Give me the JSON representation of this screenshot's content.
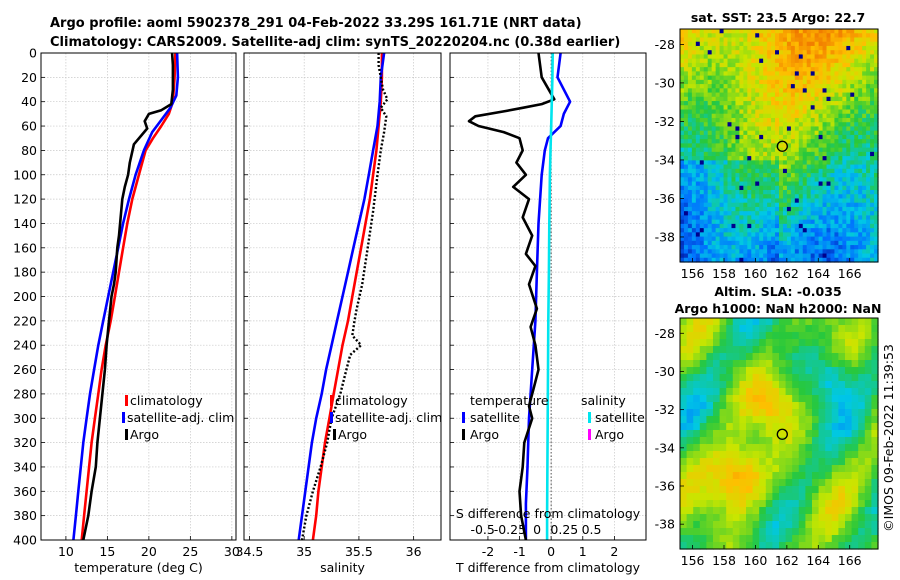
{
  "title": {
    "line1": "Argo profile: aoml 5902378_291 04-Feb-2022 33.29S 161.71E (NRT data)",
    "line2": "Climatology: CARS2009. Satellite-adj clim: synTS_20220204.nc (0.38d earlier)"
  },
  "timestamp": "©IMOS 09-Feb-2022 11:39:53",
  "colors": {
    "climatology": "#ff0000",
    "satellite": "#0000ff",
    "argo": "#000000",
    "sal_satellite": "#00e5ee",
    "sal_argo": "#ff00ff"
  },
  "chart_data": [
    {
      "type": "line",
      "panel": "temperature",
      "xlabel": "temperature (deg C)",
      "xlim": [
        7,
        30.5
      ],
      "xticks": [
        10,
        15,
        20,
        25,
        30
      ],
      "ylim": [
        400,
        0
      ],
      "yticks": [
        0,
        20,
        40,
        60,
        80,
        100,
        120,
        140,
        160,
        180,
        200,
        220,
        240,
        260,
        280,
        300,
        320,
        340,
        360,
        380,
        400
      ],
      "grid": true,
      "legend": [
        "climatology",
        "satellite-adj. clim",
        "Argo"
      ],
      "series": [
        {
          "name": "climatology",
          "color": "#ff0000",
          "points": [
            [
              23.2,
              0
            ],
            [
              23.1,
              20
            ],
            [
              22.9,
              40
            ],
            [
              22.4,
              50
            ],
            [
              21.5,
              60
            ],
            [
              20.5,
              70
            ],
            [
              19.6,
              80
            ],
            [
              18.8,
              100
            ],
            [
              18.0,
              120
            ],
            [
              17.4,
              140
            ],
            [
              16.9,
              160
            ],
            [
              16.4,
              180
            ],
            [
              15.9,
              200
            ],
            [
              15.4,
              220
            ],
            [
              14.8,
              240
            ],
            [
              14.3,
              260
            ],
            [
              13.9,
              280
            ],
            [
              13.5,
              300
            ],
            [
              13.1,
              320
            ],
            [
              12.8,
              340
            ],
            [
              12.5,
              360
            ],
            [
              12.2,
              380
            ],
            [
              11.9,
              400
            ]
          ]
        },
        {
          "name": "satellite-adj. clim",
          "color": "#0000ff",
          "points": [
            [
              23.4,
              0
            ],
            [
              23.5,
              20
            ],
            [
              23.3,
              35
            ],
            [
              22.6,
              45
            ],
            [
              21.5,
              55
            ],
            [
              20.4,
              65
            ],
            [
              19.4,
              80
            ],
            [
              18.4,
              100
            ],
            [
              17.6,
              120
            ],
            [
              16.9,
              140
            ],
            [
              16.3,
              160
            ],
            [
              15.7,
              180
            ],
            [
              15.1,
              200
            ],
            [
              14.5,
              220
            ],
            [
              13.9,
              240
            ],
            [
              13.4,
              260
            ],
            [
              12.9,
              280
            ],
            [
              12.5,
              300
            ],
            [
              12.1,
              320
            ],
            [
              11.8,
              340
            ],
            [
              11.5,
              360
            ],
            [
              11.2,
              380
            ],
            [
              10.9,
              400
            ]
          ]
        },
        {
          "name": "Argo",
          "color": "#000000",
          "points": [
            [
              22.8,
              0
            ],
            [
              22.9,
              10
            ],
            [
              22.9,
              30
            ],
            [
              22.7,
              42
            ],
            [
              21.5,
              47
            ],
            [
              20.0,
              50
            ],
            [
              19.5,
              56
            ],
            [
              19.8,
              62
            ],
            [
              18.2,
              75
            ],
            [
              17.7,
              90
            ],
            [
              17.5,
              100
            ],
            [
              17.1,
              110
            ],
            [
              16.8,
              120
            ],
            [
              16.4,
              150
            ],
            [
              16.2,
              160
            ],
            [
              16.0,
              180
            ],
            [
              15.8,
              190
            ],
            [
              15.5,
              200
            ],
            [
              15.2,
              220
            ],
            [
              14.9,
              240
            ],
            [
              14.7,
              260
            ],
            [
              14.4,
              280
            ],
            [
              14.1,
              300
            ],
            [
              13.8,
              320
            ],
            [
              13.6,
              340
            ],
            [
              13.1,
              360
            ],
            [
              12.7,
              380
            ],
            [
              12.1,
              400
            ]
          ]
        }
      ]
    },
    {
      "type": "line",
      "panel": "salinity",
      "xlabel": "salinity",
      "xlim": [
        34.45,
        36.25
      ],
      "xticks": [
        34.5,
        35,
        35.5,
        36
      ],
      "xticklabels": [
        "34.5",
        "35",
        "35.5",
        "36"
      ],
      "ylim": [
        400,
        0
      ],
      "grid": true,
      "legend": [
        "climatology",
        "satellite-adj. clim",
        "Argo"
      ],
      "series": [
        {
          "name": "climatology",
          "color": "#ff0000",
          "points": [
            [
              35.71,
              0
            ],
            [
              35.71,
              20
            ],
            [
              35.7,
              40
            ],
            [
              35.68,
              60
            ],
            [
              35.66,
              80
            ],
            [
              35.63,
              100
            ],
            [
              35.6,
              120
            ],
            [
              35.56,
              140
            ],
            [
              35.52,
              160
            ],
            [
              35.48,
              180
            ],
            [
              35.44,
              200
            ],
            [
              35.4,
              220
            ],
            [
              35.35,
              240
            ],
            [
              35.31,
              260
            ],
            [
              35.27,
              280
            ],
            [
              35.23,
              300
            ],
            [
              35.19,
              320
            ],
            [
              35.16,
              340
            ],
            [
              35.13,
              360
            ],
            [
              35.11,
              380
            ],
            [
              35.08,
              400
            ]
          ]
        },
        {
          "name": "satellite-adj. clim",
          "color": "#0000ff",
          "points": [
            [
              35.73,
              0
            ],
            [
              35.7,
              20
            ],
            [
              35.69,
              40
            ],
            [
              35.67,
              60
            ],
            [
              35.63,
              80
            ],
            [
              35.59,
              100
            ],
            [
              35.55,
              120
            ],
            [
              35.5,
              140
            ],
            [
              35.45,
              160
            ],
            [
              35.4,
              180
            ],
            [
              35.35,
              200
            ],
            [
              35.3,
              220
            ],
            [
              35.25,
              240
            ],
            [
              35.2,
              260
            ],
            [
              35.16,
              280
            ],
            [
              35.11,
              300
            ],
            [
              35.07,
              320
            ],
            [
              35.04,
              340
            ],
            [
              35.01,
              360
            ],
            [
              34.98,
              380
            ],
            [
              34.95,
              400
            ]
          ]
        },
        {
          "name": "Argo",
          "color": "#000000",
          "points": [
            [
              35.68,
              0
            ],
            [
              35.68,
              10
            ],
            [
              35.72,
              30
            ],
            [
              35.76,
              38
            ],
            [
              35.7,
              45
            ],
            [
              35.75,
              52
            ],
            [
              35.73,
              65
            ],
            [
              35.7,
              80
            ],
            [
              35.67,
              100
            ],
            [
              35.63,
              130
            ],
            [
              35.58,
              160
            ],
            [
              35.53,
              190
            ],
            [
              35.48,
              210
            ],
            [
              35.46,
              220
            ],
            [
              35.44,
              232
            ],
            [
              35.52,
              240
            ],
            [
              35.42,
              248
            ],
            [
              35.38,
              262
            ],
            [
              35.33,
              280
            ],
            [
              35.25,
              300
            ],
            [
              35.21,
              320
            ],
            [
              35.15,
              340
            ],
            [
              35.08,
              360
            ],
            [
              35.02,
              380
            ],
            [
              34.98,
              400
            ]
          ]
        }
      ]
    },
    {
      "type": "line",
      "panel": "difference",
      "xlabel": "T difference from climatology",
      "xlim": [
        -3.2,
        3.0
      ],
      "xticks": [
        -2,
        -1,
        0,
        1,
        2
      ],
      "xticklabels": [
        "-2",
        "-1",
        "0",
        "1",
        "2"
      ],
      "x2label": "S difference from climatology",
      "x2ticks": [
        -0.5,
        -0.25,
        0,
        0.25,
        0.5
      ],
      "x2ticklabels": [
        "-0.5",
        "-0.25",
        "0",
        "0.25",
        "0.5"
      ],
      "ylim": [
        400,
        0
      ],
      "grid": true,
      "legend_left": [
        "temperature",
        "satellite",
        "Argo"
      ],
      "legend_right": [
        "salinity",
        "satellite",
        "Argo"
      ],
      "series": [
        {
          "name": "temperature satellite",
          "color": "#0000ff",
          "points": [
            [
              0.3,
              0
            ],
            [
              0.2,
              20
            ],
            [
              0.6,
              40
            ],
            [
              0.4,
              50
            ],
            [
              0.3,
              60
            ],
            [
              -0.1,
              70
            ],
            [
              -0.2,
              80
            ],
            [
              -0.3,
              100
            ],
            [
              -0.4,
              140
            ],
            [
              -0.45,
              180
            ],
            [
              -0.5,
              220
            ],
            [
              -0.6,
              260
            ],
            [
              -0.7,
              300
            ],
            [
              -0.75,
              340
            ],
            [
              -0.8,
              370
            ],
            [
              -0.8,
              400
            ]
          ]
        },
        {
          "name": "Argo temperature",
          "color": "#000000",
          "points": [
            [
              -0.4,
              0
            ],
            [
              -0.3,
              20
            ],
            [
              0.1,
              38
            ],
            [
              -0.3,
              42
            ],
            [
              -0.9,
              45
            ],
            [
              -1.5,
              48
            ],
            [
              -2.4,
              52
            ],
            [
              -2.6,
              56
            ],
            [
              -2.3,
              60
            ],
            [
              -1.5,
              65
            ],
            [
              -1.0,
              70
            ],
            [
              -0.9,
              80
            ],
            [
              -1.1,
              90
            ],
            [
              -0.8,
              100
            ],
            [
              -1.2,
              110
            ],
            [
              -0.7,
              120
            ],
            [
              -0.9,
              135
            ],
            [
              -0.6,
              150
            ],
            [
              -0.8,
              165
            ],
            [
              -0.5,
              175
            ],
            [
              -0.7,
              190
            ],
            [
              -0.45,
              210
            ],
            [
              -0.65,
              225
            ],
            [
              -0.5,
              240
            ],
            [
              -0.4,
              260
            ],
            [
              -0.55,
              275
            ],
            [
              -0.7,
              290
            ],
            [
              -0.6,
              300
            ],
            [
              -0.85,
              320
            ],
            [
              -0.9,
              340
            ],
            [
              -1.0,
              360
            ],
            [
              -0.95,
              380
            ],
            [
              -0.8,
              400
            ]
          ]
        },
        {
          "name": "salinity satellite",
          "color": "#00e5ee",
          "points": [
            [
              0.05,
              0
            ],
            [
              0.04,
              20
            ],
            [
              0.02,
              40
            ],
            [
              0.0,
              60
            ],
            [
              -0.02,
              80
            ],
            [
              -0.04,
              100
            ],
            [
              -0.06,
              140
            ],
            [
              -0.07,
              180
            ],
            [
              -0.09,
              220
            ],
            [
              -0.1,
              260
            ],
            [
              -0.11,
              300
            ],
            [
              -0.12,
              340
            ],
            [
              -0.13,
              380
            ],
            [
              -0.13,
              400
            ]
          ]
        }
      ]
    },
    {
      "type": "heatmap",
      "panel": "sst-map",
      "title": "sat. SST: 23.5 Argo: 22.7",
      "xticks": [
        156,
        158,
        160,
        162,
        164,
        166
      ],
      "xticklabels": [
        "156",
        "158",
        "160",
        "162",
        "164",
        "166"
      ],
      "yticks": [
        -28,
        -30,
        -32,
        -34,
        -36,
        -38
      ],
      "yticklabels": [
        "-28",
        "-30",
        "-32",
        "-34",
        "-36",
        "-38"
      ],
      "xlim": [
        155.2,
        167.8
      ],
      "ylim": [
        -39.3,
        -27.2
      ],
      "marker": {
        "lon": 161.71,
        "lat": -33.29
      }
    },
    {
      "type": "heatmap",
      "panel": "sla-map",
      "title": "Altim. SLA: -0.035",
      "subtitle": "Argo h1000: NaN h2000: NaN",
      "xticks": [
        156,
        158,
        160,
        162,
        164,
        166
      ],
      "xticklabels": [
        "156",
        "158",
        "160",
        "162",
        "164",
        "166"
      ],
      "yticks": [
        -28,
        -30,
        -32,
        -34,
        -36,
        -38
      ],
      "yticklabels": [
        "-28",
        "-30",
        "-32",
        "-34",
        "-36",
        "-38"
      ],
      "xlim": [
        155.2,
        167.8
      ],
      "ylim": [
        -39.3,
        -27.2
      ],
      "marker": {
        "lon": 161.71,
        "lat": -33.29
      }
    }
  ]
}
